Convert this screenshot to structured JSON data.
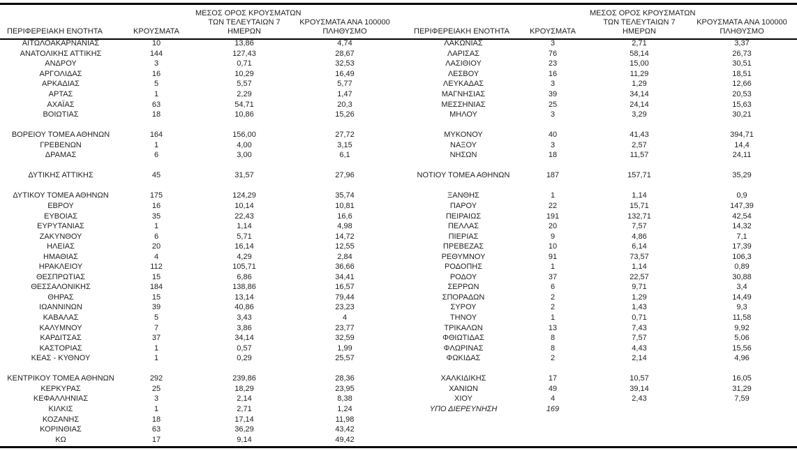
{
  "colors": {
    "background": "#ffffff",
    "text": "#1f1f1f",
    "rule": "#000000"
  },
  "columns": {
    "region": "ΠΕΡΙΦΕΡΕΙΑΚΗ ΕΝΟΤΗΤΑ",
    "cases": "ΚΡΟΥΣΜΑΤΑ",
    "avg7_lines": [
      "ΜΕΣΟΣ ΟΡΟΣ ΚΡΟΥΣΜΑΤΩΝ",
      "ΤΩΝ ΤΕΛΕΥΤΑΙΩΝ 7",
      "ΗΜΕΡΩΝ"
    ],
    "per100k_lines": [
      "ΚΡΟΥΣΜΑΤΑ ΑΝΑ 100000",
      "ΠΛΗΘΥΣΜΟ"
    ]
  },
  "left_table": {
    "rows": [
      {
        "region": "ΑΙΤΩΛΟΑΚΑΡΝΑΝΙΑΣ",
        "cases": "10",
        "avg7": "13,86",
        "per100k": "4,74"
      },
      {
        "region": "ΑΝΑΤΟΛΙΚΗΣ ΑΤΤΙΚΗΣ",
        "cases": "144",
        "avg7": "127,43",
        "per100k": "28,67"
      },
      {
        "region": "ΑΝΔΡΟΥ",
        "cases": "3",
        "avg7": "0,71",
        "per100k": "32,53"
      },
      {
        "region": "ΑΡΓΟΛΙΔΑΣ",
        "cases": "16",
        "avg7": "10,29",
        "per100k": "16,49"
      },
      {
        "region": "ΑΡΚΑΔΙΑΣ",
        "cases": "5",
        "avg7": "5,57",
        "per100k": "5,77"
      },
      {
        "region": "ΑΡΤΑΣ",
        "cases": "1",
        "avg7": "2,29",
        "per100k": "1,47"
      },
      {
        "region": "ΑΧΑΪΑΣ",
        "cases": "63",
        "avg7": "54,71",
        "per100k": "20,3"
      },
      {
        "region": "ΒΟΙΩΤΙΑΣ",
        "cases": "18",
        "avg7": "10,86",
        "per100k": "15,26"
      },
      {
        "region": "",
        "cases": "",
        "avg7": "",
        "per100k": ""
      },
      {
        "region": "ΒΟΡΕΙΟΥ ΤΟΜΕΑ ΑΘΗΝΩΝ",
        "cases": "164",
        "avg7": "156,00",
        "per100k": "27,72"
      },
      {
        "region": "ΓΡΕΒΕΝΩΝ",
        "cases": "1",
        "avg7": "4,00",
        "per100k": "3,15"
      },
      {
        "region": "ΔΡΑΜΑΣ",
        "cases": "6",
        "avg7": "3,00",
        "per100k": "6,1"
      },
      {
        "region": "",
        "cases": "",
        "avg7": "",
        "per100k": ""
      },
      {
        "region": "ΔΥΤΙΚΗΣ ΑΤΤΙΚΗΣ",
        "cases": "45",
        "avg7": "31,57",
        "per100k": "27,96"
      },
      {
        "region": "",
        "cases": "",
        "avg7": "",
        "per100k": ""
      },
      {
        "region": "ΔΥΤΙΚΟΥ ΤΟΜΕΑ ΑΘΗΝΩΝ",
        "cases": "175",
        "avg7": "124,29",
        "per100k": "35,74"
      },
      {
        "region": "ΕΒΡΟΥ",
        "cases": "16",
        "avg7": "10,14",
        "per100k": "10,81"
      },
      {
        "region": "ΕΥΒΟΙΑΣ",
        "cases": "35",
        "avg7": "22,43",
        "per100k": "16,6"
      },
      {
        "region": "ΕΥΡΥΤΑΝΙΑΣ",
        "cases": "1",
        "avg7": "1,14",
        "per100k": "4,98"
      },
      {
        "region": "ΖΑΚΥΝΘΟΥ",
        "cases": "6",
        "avg7": "5,71",
        "per100k": "14,72"
      },
      {
        "region": "ΗΛΕΙΑΣ",
        "cases": "20",
        "avg7": "16,14",
        "per100k": "12,55"
      },
      {
        "region": "ΗΜΑΘΙΑΣ",
        "cases": "4",
        "avg7": "4,29",
        "per100k": "2,84"
      },
      {
        "region": "ΗΡΑΚΛΕΙΟΥ",
        "cases": "112",
        "avg7": "105,71",
        "per100k": "36,66"
      },
      {
        "region": "ΘΕΣΠΡΩΤΙΑΣ",
        "cases": "15",
        "avg7": "6,86",
        "per100k": "34,41"
      },
      {
        "region": "ΘΕΣΣΑΛΟΝΙΚΗΣ",
        "cases": "184",
        "avg7": "138,86",
        "per100k": "16,57"
      },
      {
        "region": "ΘΗΡΑΣ",
        "cases": "15",
        "avg7": "13,14",
        "per100k": "79,44"
      },
      {
        "region": "ΙΩΑΝΝΙΝΩΝ",
        "cases": "39",
        "avg7": "40,86",
        "per100k": "23,23"
      },
      {
        "region": "ΚΑΒΑΛΑΣ",
        "cases": "5",
        "avg7": "3,43",
        "per100k": "4"
      },
      {
        "region": "ΚΑΛΥΜΝΟΥ",
        "cases": "7",
        "avg7": "3,86",
        "per100k": "23,77"
      },
      {
        "region": "ΚΑΡΔΙΤΣΑΣ",
        "cases": "37",
        "avg7": "34,14",
        "per100k": "32,59"
      },
      {
        "region": "ΚΑΣΤΟΡΙΑΣ",
        "cases": "1",
        "avg7": "0,57",
        "per100k": "1,99"
      },
      {
        "region": "ΚΕΑΣ - ΚΥΘΝΟΥ",
        "cases": "1",
        "avg7": "0,29",
        "per100k": "25,57"
      },
      {
        "region": "",
        "cases": "",
        "avg7": "",
        "per100k": ""
      },
      {
        "region": "ΚΕΝΤΡΙΚΟΥ ΤΟΜΕΑ ΑΘΗΝΩΝ",
        "cases": "292",
        "avg7": "239,86",
        "per100k": "28,36"
      },
      {
        "region": "ΚΕΡΚΥΡΑΣ",
        "cases": "25",
        "avg7": "18,29",
        "per100k": "23,95"
      },
      {
        "region": "ΚΕΦΑΛΛΗΝΙΑΣ",
        "cases": "3",
        "avg7": "2,14",
        "per100k": "8,38"
      },
      {
        "region": "ΚΙΛΚΙΣ",
        "cases": "1",
        "avg7": "2,71",
        "per100k": "1,24"
      },
      {
        "region": "ΚΟΖΑΝΗΣ",
        "cases": "18",
        "avg7": "17,14",
        "per100k": "11,98"
      },
      {
        "region": "ΚΟΡΙΝΘΙΑΣ",
        "cases": "63",
        "avg7": "36,29",
        "per100k": "43,42"
      },
      {
        "region": "ΚΩ",
        "cases": "17",
        "avg7": "9,14",
        "per100k": "49,42"
      }
    ]
  },
  "right_table": {
    "rows": [
      {
        "region": "ΛΑΚΩΝΙΑΣ",
        "cases": "3",
        "avg7": "2,71",
        "per100k": "3,37"
      },
      {
        "region": "ΛΑΡΙΣΑΣ",
        "cases": "76",
        "avg7": "58,14",
        "per100k": "26,73"
      },
      {
        "region": "ΛΑΣΙΘΙΟΥ",
        "cases": "23",
        "avg7": "15,00",
        "per100k": "30,51"
      },
      {
        "region": "ΛΕΣΒΟΥ",
        "cases": "16",
        "avg7": "11,29",
        "per100k": "18,51"
      },
      {
        "region": "ΛΕΥΚΑΔΑΣ",
        "cases": "3",
        "avg7": "1,29",
        "per100k": "12,66"
      },
      {
        "region": "ΜΑΓΝΗΣΙΑΣ",
        "cases": "39",
        "avg7": "34,14",
        "per100k": "20,53"
      },
      {
        "region": "ΜΕΣΣΗΝΙΑΣ",
        "cases": "25",
        "avg7": "24,14",
        "per100k": "15,63"
      },
      {
        "region": "ΜΗΛΟΥ",
        "cases": "3",
        "avg7": "3,29",
        "per100k": "30,21"
      },
      {
        "region": "",
        "cases": "",
        "avg7": "",
        "per100k": ""
      },
      {
        "region": "ΜΥΚΟΝΟΥ",
        "cases": "40",
        "avg7": "41,43",
        "per100k": "394,71"
      },
      {
        "region": "ΝΑΞΟΥ",
        "cases": "3",
        "avg7": "2,57",
        "per100k": "14,4"
      },
      {
        "region": "ΝΗΣΩΝ",
        "cases": "18",
        "avg7": "11,57",
        "per100k": "24,11"
      },
      {
        "region": "",
        "cases": "",
        "avg7": "",
        "per100k": ""
      },
      {
        "region": "ΝΟΤΙΟΥ ΤΟΜΕΑ ΑΘΗΝΩΝ",
        "cases": "187",
        "avg7": "157,71",
        "per100k": "35,29"
      },
      {
        "region": "",
        "cases": "",
        "avg7": "",
        "per100k": ""
      },
      {
        "region": "ΞΑΝΘΗΣ",
        "cases": "1",
        "avg7": "1,14",
        "per100k": "0,9"
      },
      {
        "region": "ΠΑΡΟΥ",
        "cases": "22",
        "avg7": "15,71",
        "per100k": "147,39"
      },
      {
        "region": "ΠΕΙΡΑΙΩΣ",
        "cases": "191",
        "avg7": "132,71",
        "per100k": "42,54"
      },
      {
        "region": "ΠΕΛΛΑΣ",
        "cases": "20",
        "avg7": "7,57",
        "per100k": "14,32"
      },
      {
        "region": "ΠΙΕΡΙΑΣ",
        "cases": "9",
        "avg7": "4,86",
        "per100k": "7,1"
      },
      {
        "region": "ΠΡΕΒΕΖΑΣ",
        "cases": "10",
        "avg7": "6,14",
        "per100k": "17,39"
      },
      {
        "region": "ΡΕΘΥΜΝΟΥ",
        "cases": "91",
        "avg7": "73,57",
        "per100k": "106,3"
      },
      {
        "region": "ΡΟΔΟΠΗΣ",
        "cases": "1",
        "avg7": "1,14",
        "per100k": "0,89"
      },
      {
        "region": "ΡΟΔΟΥ",
        "cases": "37",
        "avg7": "22,57",
        "per100k": "30,88"
      },
      {
        "region": "ΣΕΡΡΩΝ",
        "cases": "6",
        "avg7": "9,71",
        "per100k": "3,4"
      },
      {
        "region": "ΣΠΟΡΑΔΩΝ",
        "cases": "2",
        "avg7": "1,29",
        "per100k": "14,49"
      },
      {
        "region": "ΣΥΡΟΥ",
        "cases": "2",
        "avg7": "1,43",
        "per100k": "9,3"
      },
      {
        "region": "ΤΗΝΟΥ",
        "cases": "1",
        "avg7": "0,71",
        "per100k": "11,58"
      },
      {
        "region": "ΤΡΙΚΑΛΩΝ",
        "cases": "13",
        "avg7": "7,43",
        "per100k": "9,92"
      },
      {
        "region": "ΦΘΙΩΤΙΔΑΣ",
        "cases": "8",
        "avg7": "7,57",
        "per100k": "5,06"
      },
      {
        "region": "ΦΛΩΡΙΝΑΣ",
        "cases": "8",
        "avg7": "4,43",
        "per100k": "15,56"
      },
      {
        "region": "ΦΩΚΙΔΑΣ",
        "cases": "2",
        "avg7": "2,14",
        "per100k": "4,96"
      },
      {
        "region": "",
        "cases": "",
        "avg7": "",
        "per100k": ""
      },
      {
        "region": "ΧΑΛΚΙΔΙΚΗΣ",
        "cases": "17",
        "avg7": "10,57",
        "per100k": "16,05"
      },
      {
        "region": "ΧΑΝΙΩΝ",
        "cases": "49",
        "avg7": "39,14",
        "per100k": "31,29"
      },
      {
        "region": "ΧΙΟΥ",
        "cases": "4",
        "avg7": "2,43",
        "per100k": "7,59"
      },
      {
        "region": "ΥΠΟ ΔΙΕΡΕΥΝΗΣΗ",
        "cases": "169",
        "avg7": "",
        "per100k": "",
        "italic": true
      },
      {
        "region": "",
        "cases": "",
        "avg7": "",
        "per100k": ""
      },
      {
        "region": "",
        "cases": "",
        "avg7": "",
        "per100k": ""
      },
      {
        "region": "",
        "cases": "",
        "avg7": "",
        "per100k": ""
      }
    ]
  }
}
